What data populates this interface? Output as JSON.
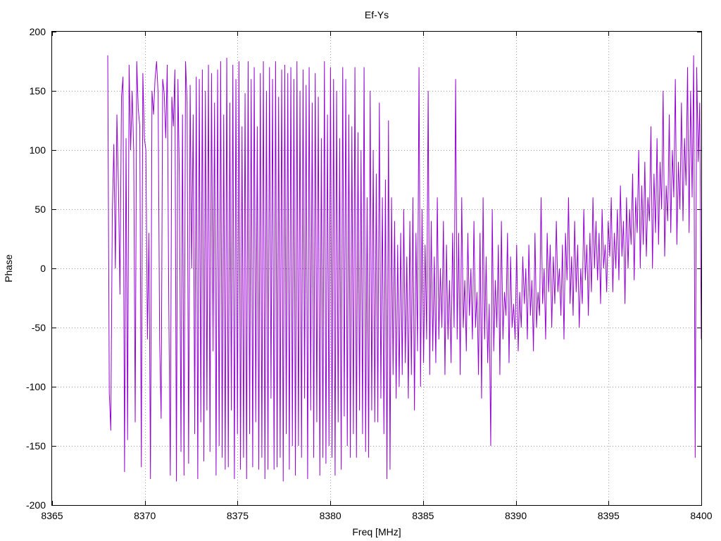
{
  "chart_data": {
    "type": "line",
    "title": "Ef-Ys",
    "xlabel": "Freq [MHz]",
    "ylabel": "Phase",
    "xlim": [
      8365,
      8400
    ],
    "ylim": [
      -200,
      200
    ],
    "xticks": [
      8365,
      8370,
      8375,
      8380,
      8385,
      8390,
      8395,
      8400
    ],
    "yticks": [
      -200,
      -150,
      -100,
      -50,
      0,
      50,
      100,
      150,
      200
    ],
    "xtick_labels": [
      "8365",
      "8370",
      "8375",
      "8380",
      "8385",
      "8390",
      "8395",
      "8400"
    ],
    "ytick_labels": [
      "-200",
      "-150",
      "-100",
      "-50",
      "0",
      "50",
      "100",
      "150",
      "200"
    ],
    "grid": true,
    "series_color": "#9400d3",
    "series": [
      {
        "x_start": 8368,
        "x_end": 8400,
        "values": [
          180,
          -105,
          -137,
          48,
          105,
          0,
          130,
          70,
          -22,
          145,
          162,
          -172,
          110,
          -145,
          172,
          100,
          150,
          100,
          -130,
          175,
          135,
          120,
          -168,
          165,
          110,
          100,
          -60,
          30,
          -178,
          150,
          130,
          160,
          175,
          148,
          -60,
          -127,
          160,
          148,
          110,
          172,
          -30,
          -175,
          145,
          120,
          168,
          -180,
          160,
          70,
          -155,
          130,
          -175,
          175,
          140,
          -165,
          155,
          0,
          130,
          -140,
          162,
          -178,
          160,
          -130,
          168,
          -163,
          150,
          -120,
          172,
          -155,
          165,
          -70,
          140,
          -175,
          168,
          -150,
          175,
          -160,
          130,
          -170,
          178,
          -168,
          140,
          -120,
          172,
          -178,
          160,
          -140,
          175,
          -170,
          120,
          -160,
          148,
          -178,
          175,
          -140,
          160,
          -168,
          170,
          -130,
          120,
          -170,
          165,
          -160,
          175,
          -178,
          150,
          -170,
          170,
          -110,
          160,
          -170,
          175,
          -168,
          145,
          -160,
          168,
          -180,
          172,
          -140,
          165,
          -170,
          170,
          -150,
          160,
          -175,
          175,
          -150,
          150,
          -160,
          168,
          -110,
          155,
          -178,
          170,
          -120,
          140,
          -160,
          165,
          -130,
          145,
          -175,
          110,
          -160,
          175,
          -165,
          130,
          -150,
          170,
          -160,
          160,
          -175,
          150,
          -130,
          110,
          -170,
          170,
          -125,
          160,
          -150,
          130,
          -160,
          120,
          -140,
          170,
          -160,
          115,
          -120,
          100,
          -140,
          170,
          -155,
          60,
          -160,
          150,
          -120,
          100,
          -130,
          80,
          -130,
          140,
          -110,
          60,
          -140,
          75,
          -178,
          125,
          -170,
          60,
          -90,
          40,
          -110,
          20,
          -100,
          30,
          -90,
          50,
          -80,
          10,
          -110,
          40,
          -90,
          60,
          -120,
          30,
          -70,
          170,
          -100,
          50,
          -80,
          20,
          -60,
          150,
          -90,
          40,
          -70,
          10,
          -80,
          60,
          -60,
          0,
          -50,
          40,
          -90,
          20,
          -60,
          -10,
          -80,
          30,
          -50,
          160,
          -60,
          30,
          -90,
          60,
          -50,
          -10,
          -70,
          30,
          -40,
          0,
          -60,
          40,
          -50,
          -20,
          -90,
          30,
          -110,
          60,
          -60,
          10,
          -80,
          -30,
          -150,
          50,
          -70,
          -10,
          -50,
          20,
          -90,
          40,
          -60,
          -20,
          -40,
          30,
          -80,
          10,
          -50,
          -30,
          -60,
          20,
          -70,
          -20,
          -50,
          10,
          -30,
          0,
          -60,
          20,
          -40,
          -10,
          -70,
          30,
          -50,
          -20,
          -40,
          60,
          -30,
          0,
          -60,
          30,
          -20,
          20,
          -50,
          10,
          -30,
          40,
          -20,
          0,
          -40,
          20,
          -60,
          30,
          -10,
          60,
          -30,
          10,
          -40,
          40,
          -20,
          20,
          -50,
          0,
          -30,
          50,
          -10,
          20,
          -40,
          30,
          -20,
          60,
          0,
          40,
          -10,
          30,
          -30,
          50,
          0,
          20,
          -20,
          40,
          10,
          60,
          -20,
          30,
          0,
          50,
          -10,
          70,
          10,
          40,
          -30,
          60,
          0,
          50,
          20,
          80,
          -10,
          60,
          30,
          100,
          0,
          70,
          20,
          90,
          10,
          60,
          40,
          120,
          0,
          80,
          30,
          110,
          20,
          90,
          50,
          150,
          10,
          70,
          40,
          130,
          30,
          100,
          60,
          160,
          20,
          90,
          50,
          140,
          40,
          110,
          70,
          170,
          30,
          150,
          60,
          180,
          -160,
          170,
          90,
          140,
          -60
        ]
      }
    ]
  }
}
